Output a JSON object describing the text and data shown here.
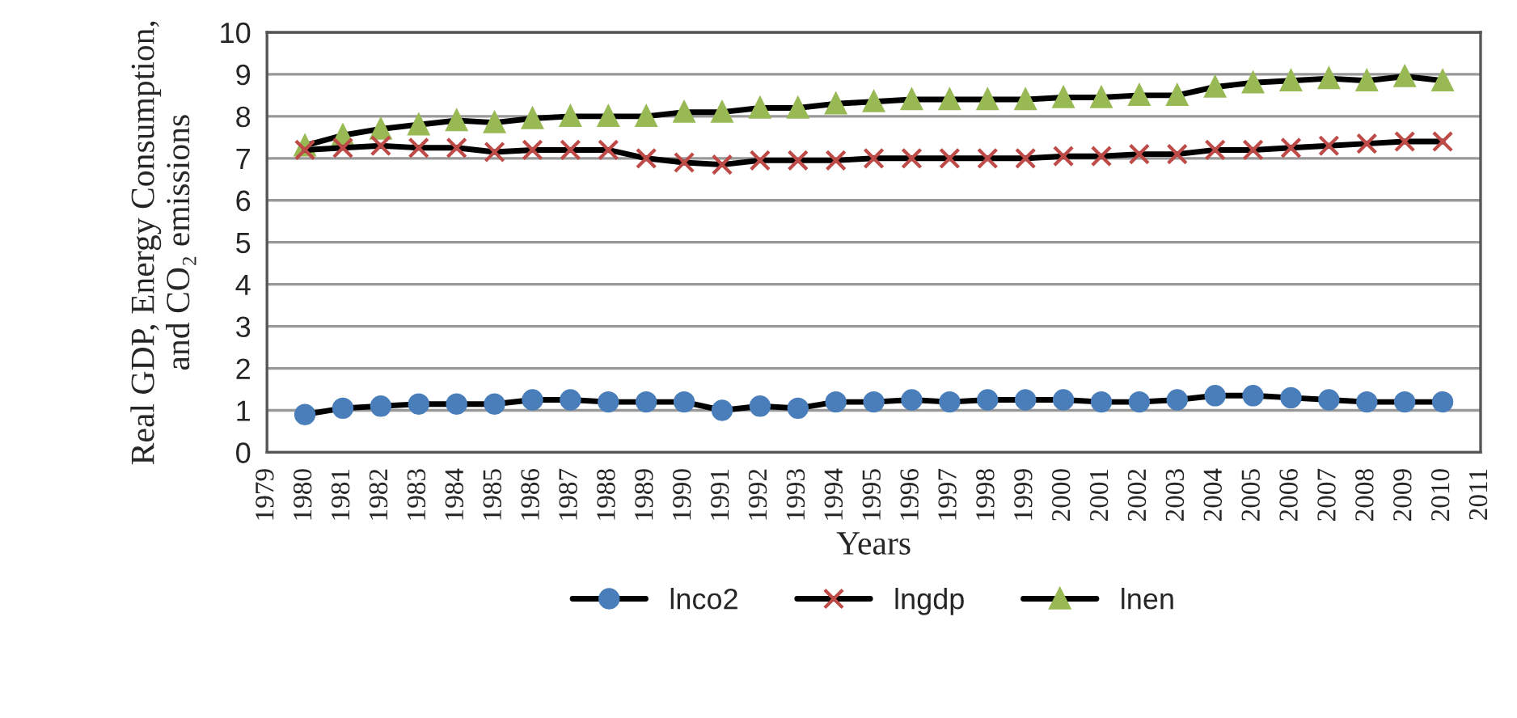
{
  "chart_data": {
    "type": "line",
    "xlabel": "Years",
    "ylabel": "Real GDP, Energy Consumption,\nand CO₂ emissions",
    "x": [
      1980,
      1981,
      1982,
      1983,
      1984,
      1985,
      1986,
      1987,
      1988,
      1989,
      1990,
      1991,
      1992,
      1993,
      1994,
      1995,
      1996,
      1997,
      1998,
      1999,
      2000,
      2001,
      2002,
      2003,
      2004,
      2005,
      2006,
      2007,
      2008,
      2009,
      2010
    ],
    "xlim": [
      1979,
      2011
    ],
    "xticks": [
      1979,
      1980,
      1981,
      1982,
      1983,
      1984,
      1985,
      1986,
      1987,
      1988,
      1989,
      1990,
      1991,
      1992,
      1993,
      1994,
      1995,
      1996,
      1997,
      1998,
      1999,
      2000,
      2001,
      2002,
      2003,
      2004,
      2005,
      2006,
      2007,
      2008,
      2009,
      2010,
      2011
    ],
    "ylim": [
      0,
      10
    ],
    "yticks": [
      0,
      1,
      2,
      3,
      4,
      5,
      6,
      7,
      8,
      9,
      10
    ],
    "grid": "y",
    "legend": "bottom",
    "line_style": "solid",
    "series": [
      {
        "name": "lnco2",
        "color": "#4a7ebb",
        "marker": "circle",
        "values": [
          0.9,
          1.05,
          1.1,
          1.15,
          1.15,
          1.15,
          1.25,
          1.25,
          1.2,
          1.2,
          1.2,
          1.0,
          1.1,
          1.05,
          1.2,
          1.2,
          1.25,
          1.2,
          1.25,
          1.25,
          1.25,
          1.2,
          1.2,
          1.25,
          1.35,
          1.35,
          1.3,
          1.25,
          1.2,
          1.2,
          1.2
        ]
      },
      {
        "name": "lngdp",
        "color": "#be4b48",
        "marker": "cross",
        "values": [
          7.2,
          7.25,
          7.3,
          7.25,
          7.25,
          7.15,
          7.2,
          7.2,
          7.2,
          7.0,
          6.9,
          6.85,
          6.95,
          6.95,
          6.95,
          7.0,
          7.0,
          7.0,
          7.0,
          7.0,
          7.05,
          7.05,
          7.1,
          7.1,
          7.2,
          7.2,
          7.25,
          7.3,
          7.35,
          7.4,
          7.4
        ]
      },
      {
        "name": "lnen",
        "color": "#98b954",
        "marker": "triangle",
        "values": [
          7.3,
          7.55,
          7.7,
          7.8,
          7.9,
          7.85,
          7.95,
          8.0,
          8.0,
          8.0,
          8.1,
          8.1,
          8.2,
          8.2,
          8.3,
          8.35,
          8.4,
          8.4,
          8.4,
          8.4,
          8.45,
          8.45,
          8.5,
          8.5,
          8.7,
          8.8,
          8.85,
          8.9,
          8.85,
          8.95,
          8.85
        ]
      }
    ]
  }
}
